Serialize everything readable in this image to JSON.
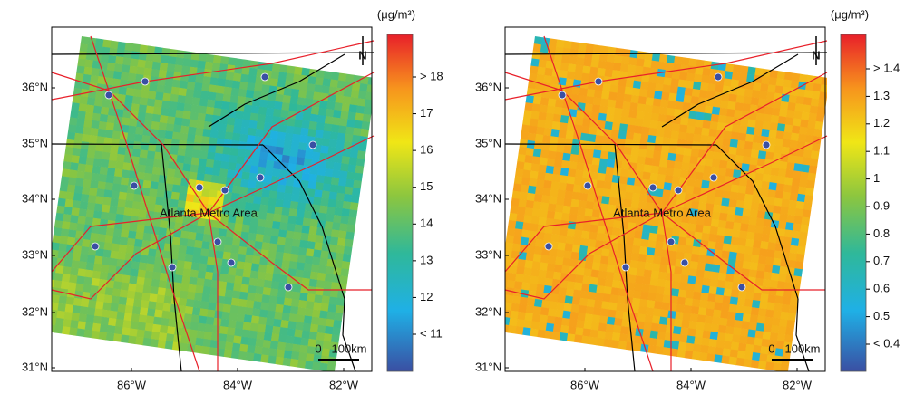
{
  "panels": [
    {
      "unit": "(μg/m³)",
      "colorbar_labels": [
        "> 18",
        "17",
        "16",
        "15",
        "14",
        "13",
        "12",
        "< 11"
      ],
      "lat_labels": [
        "36°N",
        "35°N",
        "34°N",
        "33°N",
        "32°N",
        "31°N"
      ],
      "lon_labels": [
        "86°W",
        "84°W",
        "82°W"
      ],
      "annotation": "Atlanta Metro Area",
      "north": "N",
      "scale_labels": [
        "0",
        "100km"
      ]
    },
    {
      "unit": "(μg/m³)",
      "colorbar_labels": [
        "> 1.4",
        "1.3",
        "1.2",
        "1.1",
        "1",
        "0.9",
        "0.8",
        "0.7",
        "0.6",
        "0.5",
        "< 0.4"
      ],
      "lat_labels": [
        "36°N",
        "35°N",
        "34°N",
        "33°N",
        "32°N",
        "31°N"
      ],
      "lon_labels": [
        "86°W",
        "84°W",
        "82°W"
      ],
      "annotation": "Atlanta Metro Area",
      "north": "N",
      "scale_labels": [
        "0",
        "100km"
      ]
    }
  ]
}
